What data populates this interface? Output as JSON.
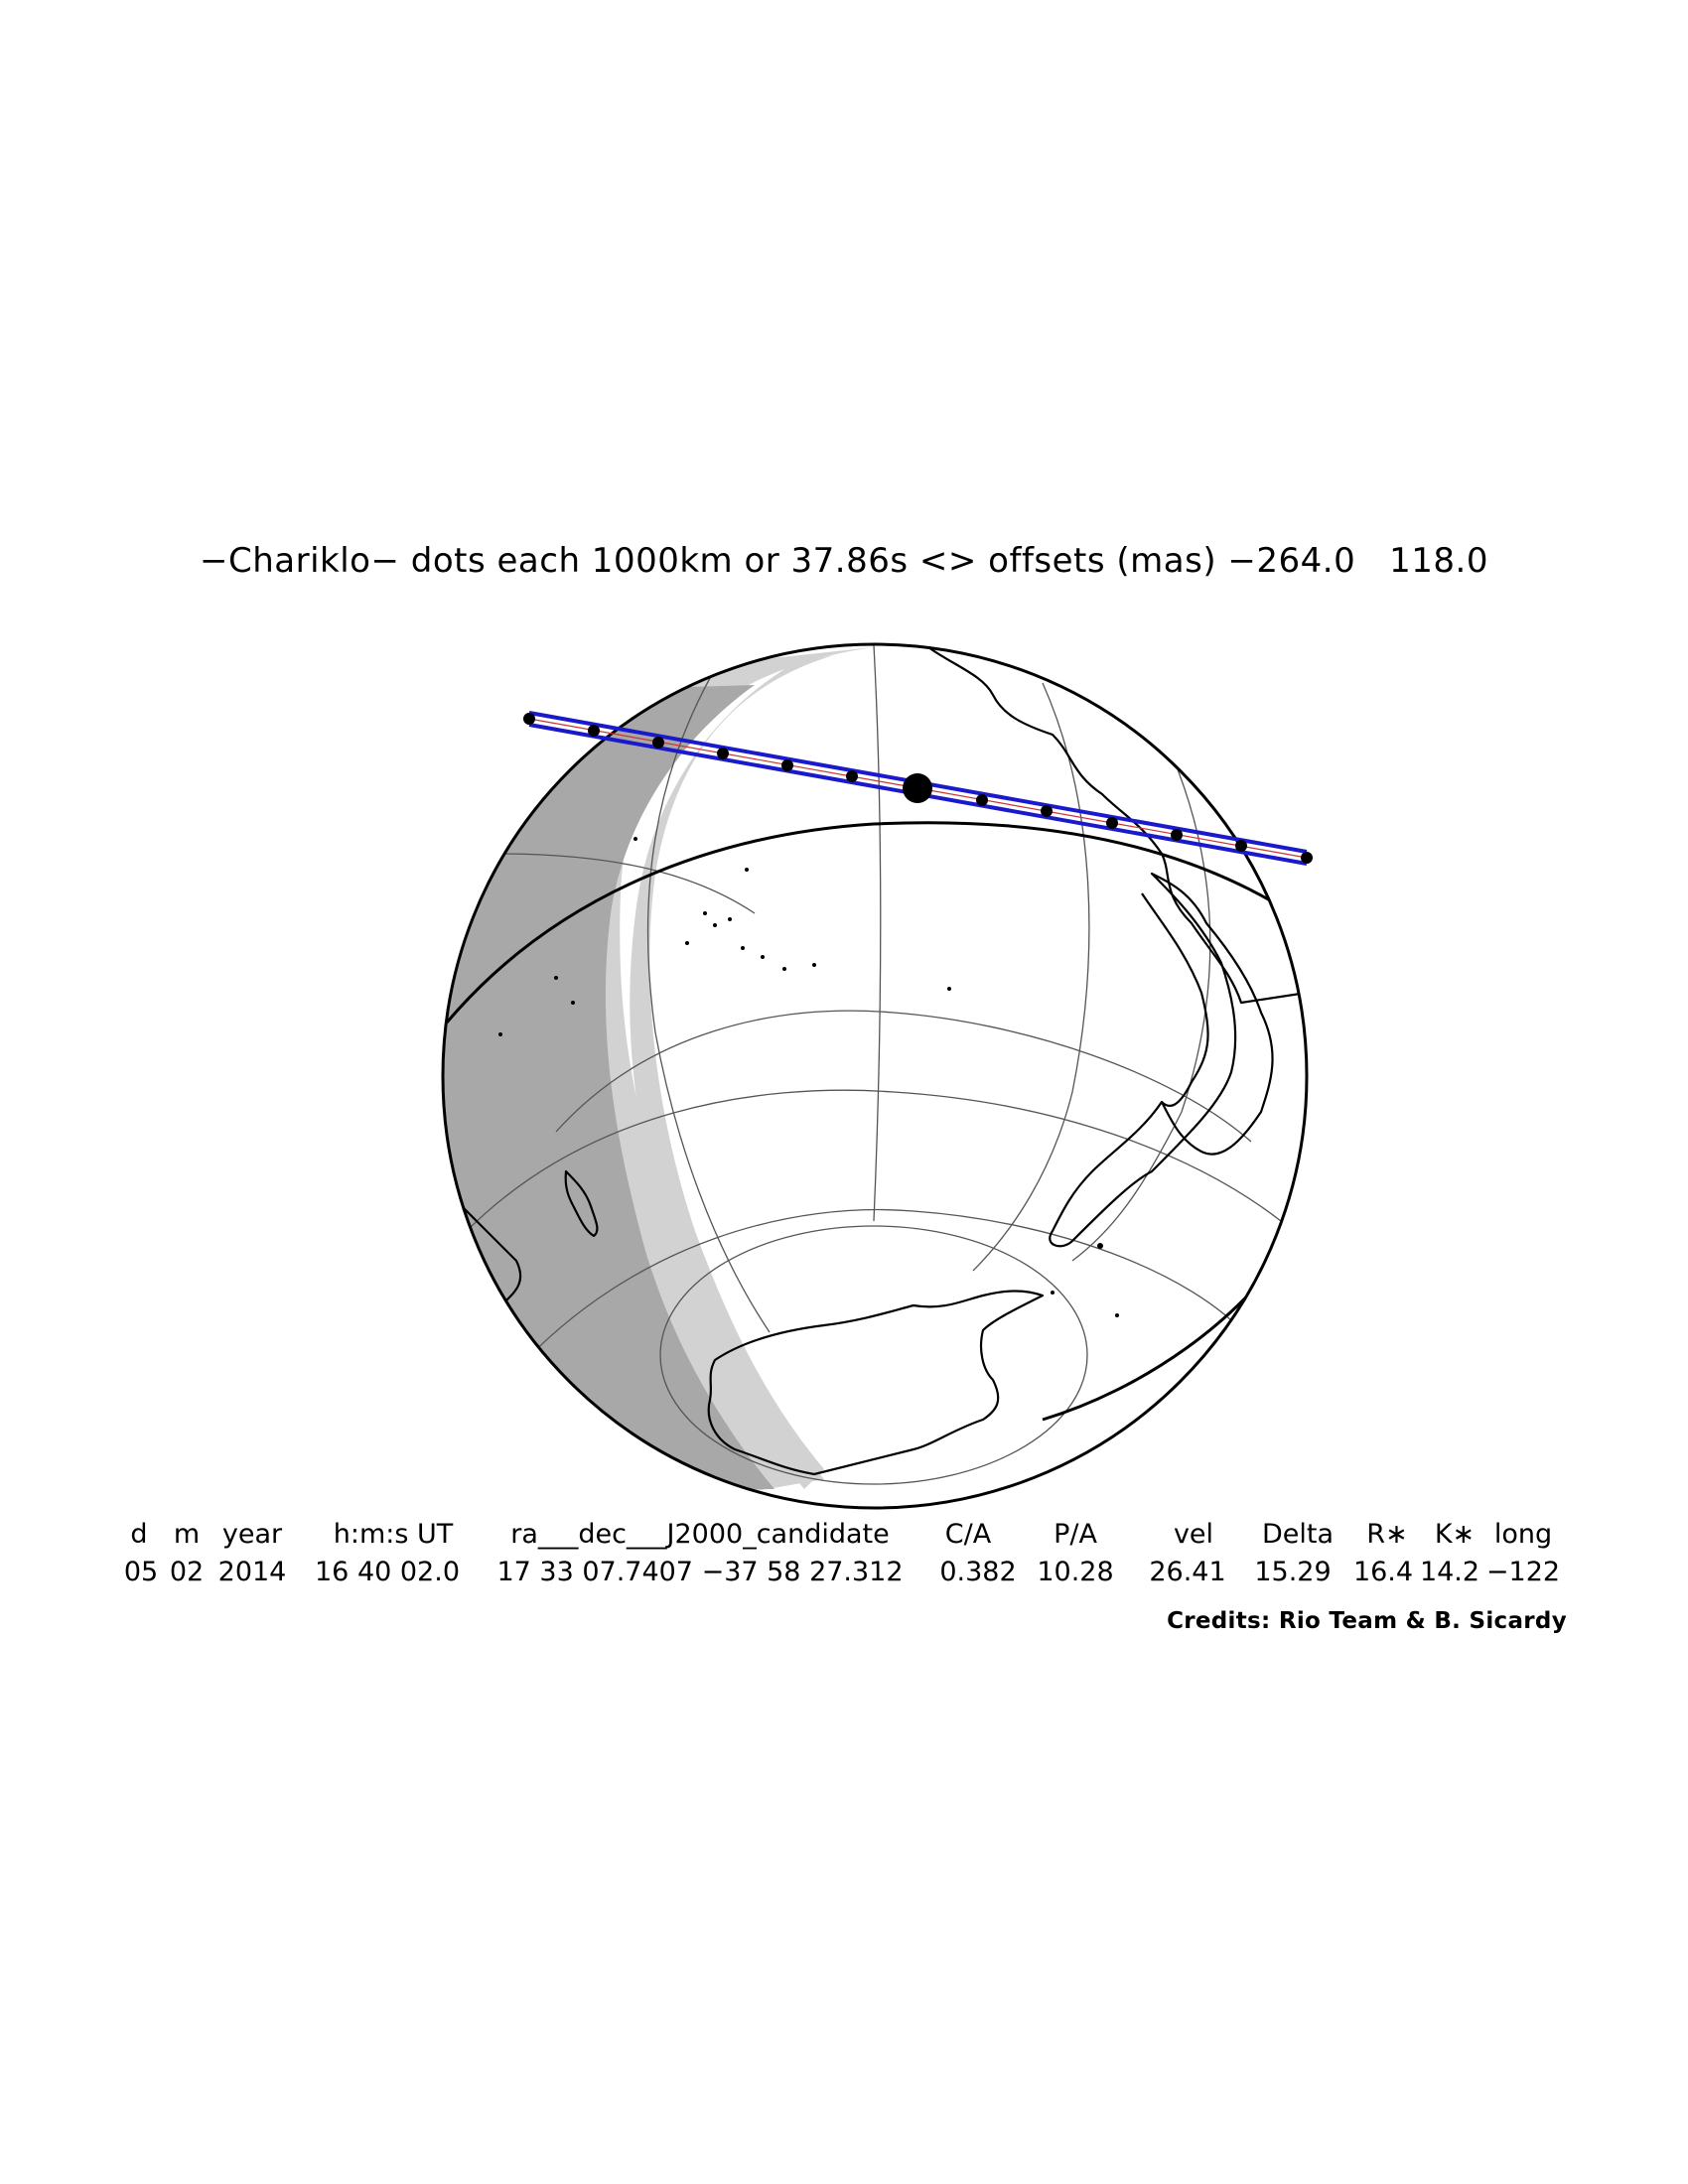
{
  "title": "−Chariklo− dots each 1000km or 37.86s <> offsets (mas) −264.0   118.0",
  "table": {
    "headers": [
      "d",
      "m",
      "year",
      "h:m:s UT",
      "ra___dec___J2000_candidate",
      "C/A",
      "P/A",
      "vel",
      "Delta",
      "R∗",
      "K∗",
      "long"
    ],
    "values": [
      "05",
      "02",
      "2014",
      "16 40 02.0",
      "17 33 07.7407 −37 58 27.312",
      "0.382",
      "10.28",
      "26.41",
      "15.29",
      "16.4",
      "14.2",
      "−122"
    ]
  },
  "credits": "Credits: Rio Team & B. Sicardy",
  "map": {
    "body": "Chariklo",
    "dot_spacing_km": 1000,
    "dot_spacing_s": 37.86,
    "offsets_mas": [
      -264.0,
      118.0
    ],
    "track_color": "#1a1acc",
    "center_line_color": "#cc3333",
    "twilight_light_color": "#d0d0d0",
    "twilight_dark_color": "#a8a8a8"
  }
}
